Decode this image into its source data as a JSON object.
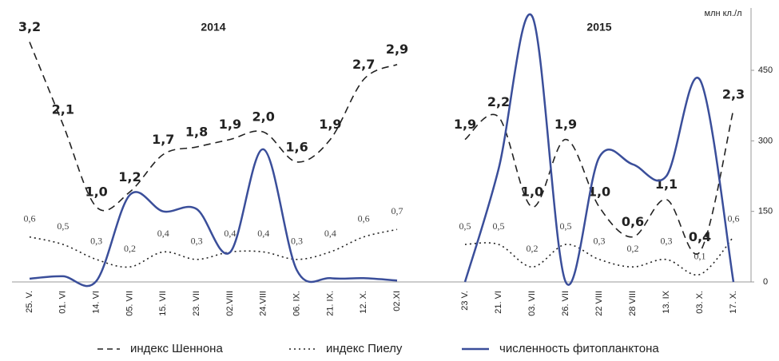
{
  "chart_data": {
    "type": "line",
    "y2label": "млн кл./л",
    "ylim": [
      0,
      3.6
    ],
    "y2lim": [
      0,
      574
    ],
    "y2ticks": [
      0,
      150,
      300,
      450
    ],
    "panels": [
      {
        "title": "2014",
        "categories": [
          "25. V.",
          "01. VI",
          "14. VI",
          "05. VII",
          "15. VII",
          "23. VII",
          "02.VIII",
          "24.VIII",
          "06. IX.",
          "21. IX.",
          "12. X.",
          "02.XI"
        ],
        "series": [
          {
            "name": "индекс Шеннона",
            "color": "#222222",
            "style": "dashed",
            "values": [
              3.2,
              2.1,
              1.0,
              1.2,
              1.7,
              1.8,
              1.9,
              2.0,
              1.6,
              1.9,
              2.7,
              2.9
            ],
            "value_labels": [
              "3,2",
              "2,1",
              "1,0",
              "1,2",
              "1,7",
              "1,8",
              "1,9",
              "2,0",
              "1,6",
              "1,9",
              "2,7",
              "2,9"
            ]
          },
          {
            "name": "индекс Пиелу",
            "color": "#222222",
            "style": "dotted",
            "values": [
              0.6,
              0.5,
              0.3,
              0.2,
              0.4,
              0.3,
              0.4,
              0.4,
              0.3,
              0.4,
              0.6,
              0.7
            ],
            "value_labels": [
              "0,6",
              "0,5",
              "0,3",
              "0,2",
              "0,4",
              "0,3",
              "0,4",
              "0,4",
              "0,3",
              "0,4",
              "0,6",
              "0,7"
            ]
          },
          {
            "name": "численность фитопланктона",
            "color": "#3a4e9a",
            "style": "solid",
            "axis": "y2",
            "values": [
              7,
              12,
              2,
              185,
              150,
              155,
              63,
              282,
              25,
              8,
              8,
              3
            ]
          }
        ]
      },
      {
        "title": "2015",
        "categories": [
          "23 V.",
          "21. VI",
          "03. VII",
          "26. VII",
          "22 VIII",
          "28 VIII",
          "13. IX",
          "03. X.",
          "17. X."
        ],
        "series": [
          {
            "name": "индекс Шеннона",
            "color": "#222222",
            "style": "dashed",
            "values": [
              1.9,
              2.2,
              1.0,
              1.9,
              1.0,
              0.6,
              1.1,
              0.4,
              2.3
            ],
            "value_labels": [
              "1,9",
              "2,2",
              "1,0",
              "1,9",
              "1,0",
              "0,6",
              "1,1",
              "0,4",
              "2,3"
            ]
          },
          {
            "name": "индекс Пиелу",
            "color": "#222222",
            "style": "dotted",
            "values": [
              0.5,
              0.5,
              0.2,
              0.5,
              0.3,
              0.2,
              0.3,
              0.1,
              0.6
            ],
            "value_labels": [
              "0,5",
              "0,5",
              "0,2",
              "0,5",
              "0,3",
              "0,2",
              "0,3",
              "0,1",
              "0,6"
            ]
          },
          {
            "name": "численность фитопланктона",
            "color": "#3a4e9a",
            "style": "solid",
            "axis": "y2",
            "values": [
              0,
              240,
              565,
              0,
              265,
              250,
              225,
              430,
              0
            ]
          }
        ]
      }
    ]
  }
}
